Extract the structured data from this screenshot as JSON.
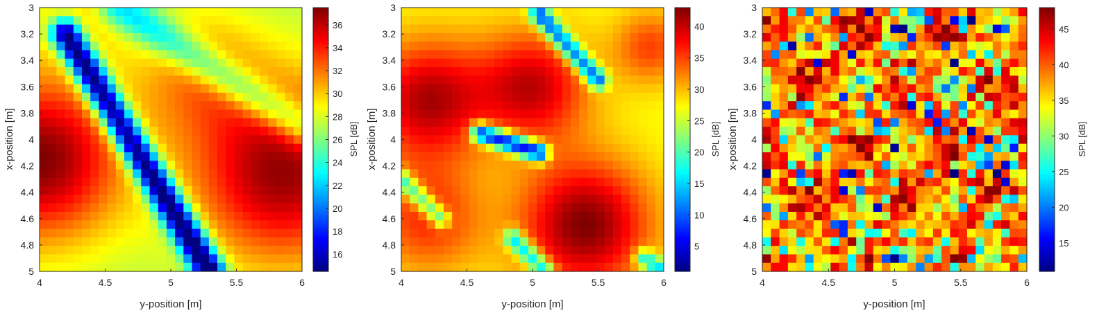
{
  "chart_data": [
    {
      "type": "heatmap",
      "xlabel": "y-position [m]",
      "ylabel": "x-position [m]",
      "colorbar_label": "SPL [dB]",
      "xlim": [
        4,
        6
      ],
      "ylim": [
        3,
        5
      ],
      "y_axis_reversed": true,
      "x_ticks": [
        "4",
        "4.5",
        "5",
        "5.5",
        "6"
      ],
      "y_ticks": [
        "3",
        "3.2",
        "3.4",
        "3.6",
        "3.8",
        "4",
        "4.2",
        "4.4",
        "4.6",
        "4.8",
        "5"
      ],
      "colorbar_ticks": [
        "16",
        "18",
        "20",
        "22",
        "24",
        "26",
        "28",
        "30",
        "32",
        "34",
        "36"
      ],
      "clim": [
        14.5,
        37.5
      ],
      "colormap": "jet",
      "grid_cells": 31,
      "features": "smooth field: high (~37 dB) near y=4.0, x=4.1 and y=5.8, x=4.2; low trough (~14 dB) along diagonal from y=4.3, x=3.4 to y=5.2, x=4.9"
    },
    {
      "type": "heatmap",
      "xlabel": "y-position [m]",
      "ylabel": "x-position [m]",
      "colorbar_label": "SPL [dB]",
      "xlim": [
        4,
        6
      ],
      "ylim": [
        3,
        5
      ],
      "y_axis_reversed": true,
      "x_ticks": [
        "4",
        "4.5",
        "5",
        "5.5",
        "6"
      ],
      "y_ticks": [
        "3",
        "3.2",
        "3.4",
        "3.6",
        "3.8",
        "4",
        "4.2",
        "4.4",
        "4.6",
        "4.8",
        "5"
      ],
      "colorbar_ticks": [
        "5",
        "10",
        "15",
        "20",
        "25",
        "30",
        "35",
        "40"
      ],
      "clim": [
        1,
        43
      ],
      "colormap": "jet",
      "grid_cells": 31,
      "features": "maxima (~40-43 dB) near y=4.2, x=3.6; y=5.0, x=3.6; y=5.4, x=4.6; minima along short lines, deepest (~2 dB) near y=4.95, x=4.05"
    },
    {
      "type": "heatmap",
      "xlabel": "y-position [m]",
      "ylabel": "x-position [m]",
      "colorbar_label": "SPL [dB]",
      "xlim": [
        4,
        6
      ],
      "ylim": [
        3,
        5
      ],
      "y_axis_reversed": true,
      "x_ticks": [
        "4",
        "4.5",
        "5",
        "5.5",
        "6"
      ],
      "y_ticks": [
        "3",
        "3.2",
        "3.4",
        "3.6",
        "3.8",
        "4",
        "4.2",
        "4.4",
        "4.6",
        "4.8",
        "5"
      ],
      "colorbar_ticks": [
        "15",
        "20",
        "25",
        "30",
        "35",
        "40",
        "45"
      ],
      "clim": [
        11,
        48
      ],
      "colormap": "jet",
      "grid_cells": 31,
      "features": "irregular high-frequency field, mostly 38-48 dB with scattered low cells down to ~11 dB"
    }
  ]
}
